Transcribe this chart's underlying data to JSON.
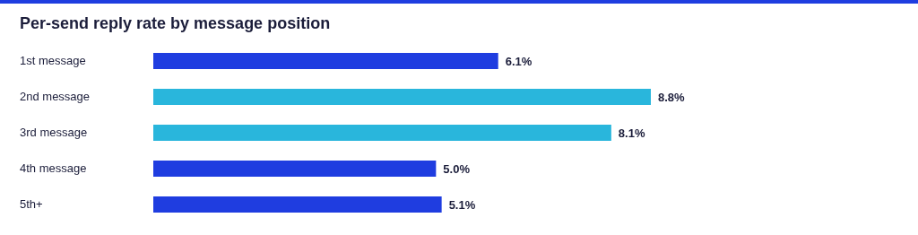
{
  "chart_data": {
    "type": "bar",
    "orientation": "horizontal",
    "title": "Per-send reply rate by message position",
    "categories": [
      "1st message",
      "2nd message",
      "3rd message",
      "4th message",
      "5th+"
    ],
    "values": [
      6.1,
      8.8,
      8.1,
      5.0,
      5.1
    ],
    "colors": [
      "#1f3de0",
      "#29b6dc",
      "#29b6dc",
      "#1f3de0",
      "#1f3de0"
    ],
    "value_labels": [
      "6.1%",
      "8.8%",
      "8.1%",
      "5.0%",
      "5.1%"
    ],
    "grid": false,
    "legend": false
  }
}
